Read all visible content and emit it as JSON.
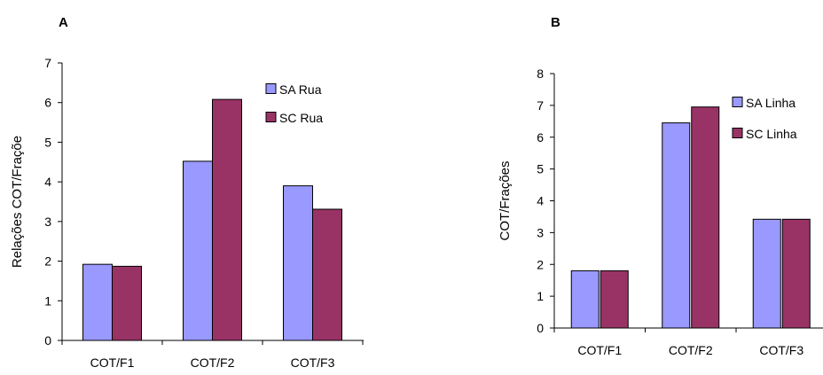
{
  "chart_data": [
    {
      "panel": "A",
      "type": "bar",
      "title": "",
      "xlabel": "",
      "ylabel": "Relações COT/Fraçõe",
      "ylim": [
        0,
        7
      ],
      "yticks": [
        0,
        1,
        2,
        3,
        4,
        5,
        6,
        7
      ],
      "grid": false,
      "legend_position": "top-right",
      "categories": [
        "COT/F1",
        "COT/F2",
        "COT/F3"
      ],
      "series": [
        {
          "name": "SA Rua",
          "color": "#9999ff",
          "values": [
            1.92,
            4.52,
            3.9
          ]
        },
        {
          "name": "SC Rua",
          "color": "#993366",
          "values": [
            1.87,
            6.08,
            3.31
          ]
        }
      ]
    },
    {
      "panel": "B",
      "type": "bar",
      "title": "",
      "xlabel": "",
      "ylabel": "COT/Frações",
      "ylim": [
        0,
        8
      ],
      "yticks": [
        0,
        1,
        2,
        3,
        4,
        5,
        6,
        7,
        8
      ],
      "grid": false,
      "legend_position": "top-right",
      "categories": [
        "COT/F1",
        "COT/F2",
        "COT/F3"
      ],
      "series": [
        {
          "name": "SA Linha",
          "color": "#9999ff",
          "values": [
            1.8,
            6.45,
            3.42
          ]
        },
        {
          "name": "SC Linha",
          "color": "#993366",
          "values": [
            1.8,
            6.95,
            3.42
          ]
        }
      ]
    }
  ]
}
